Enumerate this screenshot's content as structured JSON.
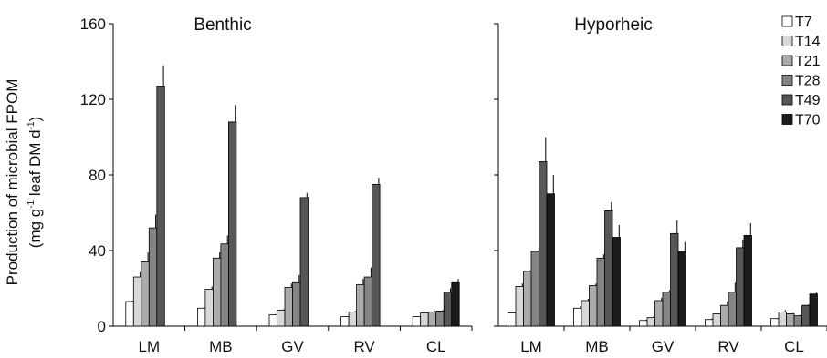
{
  "chart_data": {
    "type": "bar",
    "ylim": [
      0,
      160
    ],
    "yticks": [
      0,
      40,
      80,
      120,
      160
    ],
    "ylabel": {
      "line1": "Production of microbial FPOM",
      "line2_parts": [
        "(mg g",
        "-1",
        " leaf DM d",
        "-1",
        ")"
      ]
    },
    "series": [
      {
        "name": "T7",
        "color": "#ffffff"
      },
      {
        "name": "T14",
        "color": "#d8d8d8"
      },
      {
        "name": "T21",
        "color": "#ababab"
      },
      {
        "name": "T28",
        "color": "#858585"
      },
      {
        "name": "T49",
        "color": "#575757"
      },
      {
        "name": "T70",
        "color": "#1c1c1c"
      }
    ],
    "panels": [
      {
        "title": "Benthic",
        "categories": [
          "LM",
          "MB",
          "GV",
          "RV",
          "CL"
        ],
        "values": {
          "T7": [
            13,
            9.5,
            6,
            5,
            5
          ],
          "T14": [
            26,
            19.5,
            8.5,
            7.5,
            7
          ],
          "T21": [
            34,
            36,
            20.5,
            22,
            7.5
          ],
          "T28": [
            52,
            43.5,
            23,
            26,
            8
          ],
          "T49": [
            127,
            108,
            68,
            75,
            18
          ],
          "T70": [
            null,
            null,
            null,
            null,
            23
          ]
        },
        "errors": {
          "T7": [
            0.5,
            0.5,
            0.3,
            0.3,
            0.3
          ],
          "T14": [
            2.5,
            1.5,
            0.5,
            0.5,
            0.3
          ],
          "T21": [
            5,
            3,
            2,
            3,
            0.5
          ],
          "T28": [
            7,
            4.5,
            4,
            5,
            0.5
          ],
          "T49": [
            11,
            9,
            2.5,
            3.5,
            2
          ],
          "T70": [
            null,
            null,
            null,
            null,
            2
          ]
        }
      },
      {
        "title": "Hyporheic",
        "categories": [
          "LM",
          "MB",
          "GV",
          "RV",
          "CL"
        ],
        "values": {
          "T7": [
            7,
            9.5,
            3,
            3.5,
            4
          ],
          "T14": [
            21,
            13.5,
            4.5,
            6.5,
            7.5
          ],
          "T21": [
            29,
            21.5,
            13.5,
            11,
            6.5
          ],
          "T28": [
            39.5,
            36,
            18,
            18,
            5.5
          ],
          "T49": [
            87,
            61,
            49,
            41.5,
            11
          ],
          "T70": [
            70,
            47,
            39.5,
            48,
            17
          ]
        },
        "errors": {
          "T7": [
            0.3,
            1,
            0.3,
            0.5,
            0.3
          ],
          "T14": [
            1.5,
            1,
            1,
            0.3,
            1
          ],
          "T21": [
            0.5,
            1,
            1.5,
            2,
            0.5
          ],
          "T28": [
            0.5,
            2,
            1,
            5,
            0.5
          ],
          "T49": [
            13,
            4.5,
            7,
            4,
            0.5
          ],
          "T70": [
            10,
            6.5,
            5,
            6.5,
            1
          ]
        }
      }
    ]
  }
}
